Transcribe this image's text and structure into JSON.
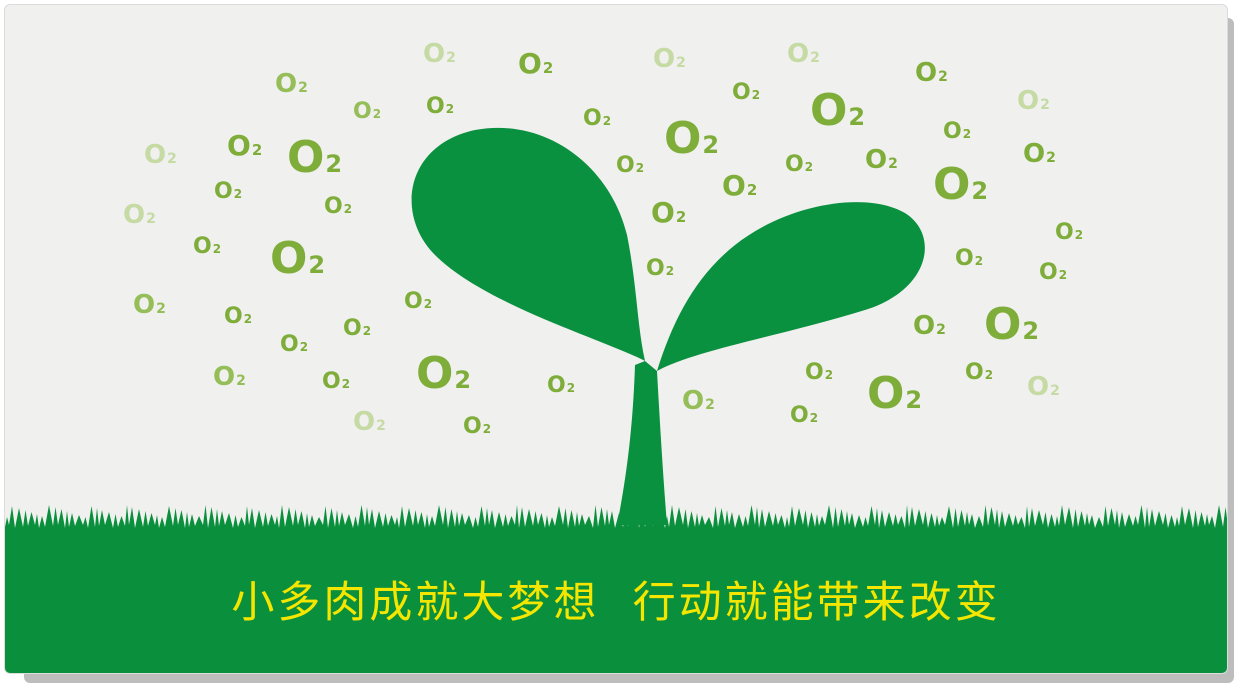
{
  "slogan": "小多肉成就大梦想  行动就能带来改变",
  "colors": {
    "background": "#f0f0ef",
    "grass": "#0a8f3c",
    "sprout": "#0a9140",
    "slogan_text": "#f5e600",
    "o2_strong": "#7fad3a",
    "o2_medium": "#95bd58",
    "o2_light": "#c6daa4"
  },
  "icons": [
    "sprout-icon",
    "grass-strip",
    "oxygen-molecule-icon"
  ],
  "o2_label": "O",
  "o2_subscript": "2"
}
